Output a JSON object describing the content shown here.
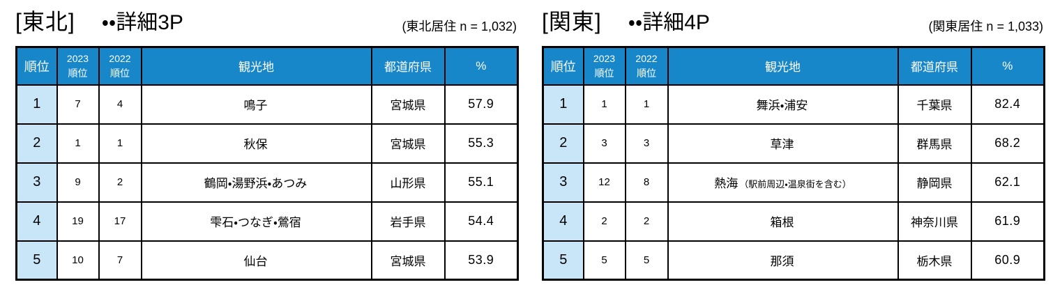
{
  "colors": {
    "header_bg": "#1787C9",
    "header_text": "#FFFFFF",
    "rank_cell_bg": "#C9E5F8",
    "border": "#000000"
  },
  "columns": {
    "rank": "順位",
    "y2023": "2023",
    "y2022": "2022",
    "rank_sub": "順位",
    "spot": "観光地",
    "prefecture": "都道府県",
    "percent": "%"
  },
  "tables": [
    {
      "title_region": "[東北]",
      "title_detail": "・・詳細3P",
      "sample_note": "(東北居住 n = 1,032)",
      "rows": [
        {
          "rank": "1",
          "rank_2023": "7",
          "rank_2022": "4",
          "spot": "鳴子",
          "spot_note": "",
          "prefecture": "宮城県",
          "percent": "57.9"
        },
        {
          "rank": "2",
          "rank_2023": "1",
          "rank_2022": "1",
          "spot": "秋保",
          "spot_note": "",
          "prefecture": "宮城県",
          "percent": "55.3"
        },
        {
          "rank": "3",
          "rank_2023": "9",
          "rank_2022": "2",
          "spot": "鶴岡・湯野浜・あつみ",
          "spot_note": "",
          "prefecture": "山形県",
          "percent": "55.1"
        },
        {
          "rank": "4",
          "rank_2023": "19",
          "rank_2022": "17",
          "spot": "雫石・つなぎ・鶯宿",
          "spot_note": "",
          "prefecture": "岩手県",
          "percent": "54.4"
        },
        {
          "rank": "5",
          "rank_2023": "10",
          "rank_2022": "7",
          "spot": "仙台",
          "spot_note": "",
          "prefecture": "宮城県",
          "percent": "53.9"
        }
      ]
    },
    {
      "title_region": "[関東]",
      "title_detail": "・・詳細4P",
      "sample_note": "(関東居住 n = 1,033)",
      "rows": [
        {
          "rank": "1",
          "rank_2023": "1",
          "rank_2022": "1",
          "spot": "舞浜・浦安",
          "spot_note": "",
          "prefecture": "千葉県",
          "percent": "82.4"
        },
        {
          "rank": "2",
          "rank_2023": "3",
          "rank_2022": "3",
          "spot": "草津",
          "spot_note": "",
          "prefecture": "群馬県",
          "percent": "68.2"
        },
        {
          "rank": "3",
          "rank_2023": "12",
          "rank_2022": "8",
          "spot": "熱海",
          "spot_note": "（駅前周辺・温泉街を含む）",
          "prefecture": "静岡県",
          "percent": "62.1"
        },
        {
          "rank": "4",
          "rank_2023": "2",
          "rank_2022": "2",
          "spot": "箱根",
          "spot_note": "",
          "prefecture": "神奈川県",
          "percent": "61.9"
        },
        {
          "rank": "5",
          "rank_2023": "5",
          "rank_2022": "5",
          "spot": "那須",
          "spot_note": "",
          "prefecture": "栃木県",
          "percent": "60.9"
        }
      ]
    }
  ]
}
